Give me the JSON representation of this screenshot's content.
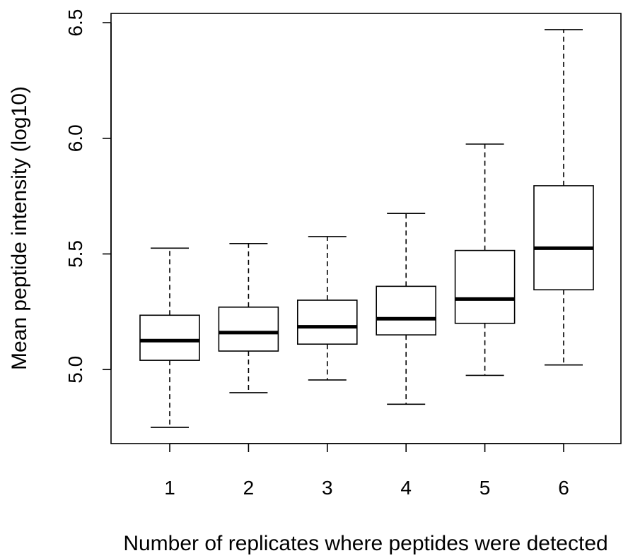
{
  "chart_data": {
    "type": "boxplot",
    "title": "",
    "xlabel": "Number of replicates where peptides were detected",
    "ylabel": "Mean peptide intensity (log10)",
    "ylim": [
      4.68,
      6.54
    ],
    "yticks": [
      "5.0",
      "5.5",
      "6.0",
      "6.5"
    ],
    "grid": false,
    "categories": [
      "1",
      "2",
      "3",
      "4",
      "5",
      "6"
    ],
    "boxes": [
      {
        "category": "1",
        "whisker_low": 4.75,
        "q1": 5.04,
        "median": 5.125,
        "q3": 5.235,
        "whisker_high": 5.525
      },
      {
        "category": "2",
        "whisker_low": 4.9,
        "q1": 5.08,
        "median": 5.16,
        "q3": 5.27,
        "whisker_high": 5.545
      },
      {
        "category": "3",
        "whisker_low": 4.955,
        "q1": 5.11,
        "median": 5.185,
        "q3": 5.3,
        "whisker_high": 5.575
      },
      {
        "category": "4",
        "whisker_low": 4.85,
        "q1": 5.15,
        "median": 5.22,
        "q3": 5.36,
        "whisker_high": 5.675
      },
      {
        "category": "5",
        "whisker_low": 4.975,
        "q1": 5.2,
        "median": 5.305,
        "q3": 5.515,
        "whisker_high": 5.975
      },
      {
        "category": "6",
        "whisker_low": 5.02,
        "q1": 5.345,
        "median": 5.525,
        "q3": 5.795,
        "whisker_high": 6.47
      }
    ]
  }
}
